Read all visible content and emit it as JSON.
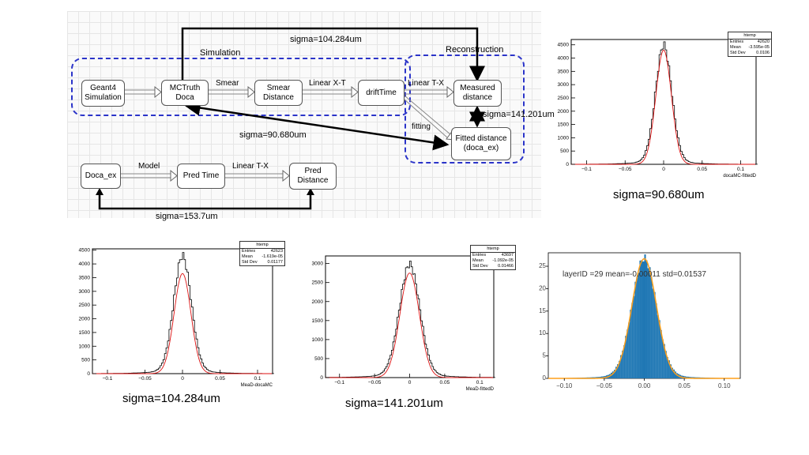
{
  "diagram": {
    "sim_label": "Simulation",
    "reco_label": "Reconstruction",
    "boxes": {
      "geant4": "Geant4\nSimulation",
      "mctruth": "MCTruth Doca",
      "smear_distance": "Smear\nDistance",
      "drifttime": "driftTime",
      "measured": "Measured\ndistance",
      "fitted": "Fitted distance\n(doca_ex)",
      "doca_ex": "Doca_ex",
      "pred_time": "Pred Time",
      "pred_distance": "Pred\nDistance"
    },
    "arrow_labels": {
      "smear": "Smear",
      "linear_xt": "Linear X-T",
      "linear_tx": "Linear T-X",
      "fitting": "fitting",
      "model": "Model",
      "linear_tx2": "Linear T-X"
    },
    "sigma_top": "sigma=104.284um",
    "sigma_mid": "sigma=90.680um",
    "sigma_right": "sigma=141.201um",
    "sigma_bottom": "sigma=153.7um"
  },
  "captions": {
    "c1": "sigma=90.680um",
    "c2": "sigma=104.284um",
    "c3": "sigma=141.201um"
  },
  "chart_data": [
    {
      "type": "bar",
      "stats_title": "htemp",
      "stats": [
        [
          "Entries",
          "42620"
        ],
        [
          "Mean",
          "-3.595e-05"
        ],
        [
          "Std Dev",
          "0.0106"
        ]
      ],
      "xlabel": "docaMC-fittedD",
      "xlim": [
        -0.12,
        0.12
      ],
      "ylim": [
        0,
        4700
      ],
      "xticks": [
        -0.1,
        -0.05,
        0,
        0.05,
        0.1
      ],
      "xtick_labels": [
        "−0.1",
        "−0.05",
        "0",
        "0.05",
        "0.1"
      ],
      "yticks": [
        0,
        500,
        1000,
        1500,
        2000,
        2500,
        3000,
        3500,
        4000,
        4500
      ],
      "peak": 4600,
      "sigma": 0.0106,
      "mean": 0,
      "fit_peak": 4300
    },
    {
      "type": "bar",
      "stats_title": "htemp",
      "stats": [
        [
          "Entries",
          "42623"
        ],
        [
          "Mean",
          "-1.619e-05"
        ],
        [
          "Std Dev",
          "0.01177"
        ]
      ],
      "xlabel": "MeaD-docaMC",
      "xlim": [
        -0.12,
        0.12
      ],
      "ylim": [
        0,
        4550
      ],
      "xticks": [
        -0.1,
        -0.05,
        0,
        0.05,
        0.1
      ],
      "xtick_labels": [
        "−0.1",
        "−0.05",
        "0",
        "0.05",
        "0.1"
      ],
      "yticks": [
        0,
        500,
        1000,
        1500,
        2000,
        2500,
        3000,
        3500,
        4000,
        4500
      ],
      "peak": 4400,
      "sigma": 0.01177,
      "mean": 0,
      "fit_peak": 3650
    },
    {
      "type": "bar",
      "stats_title": "htemp",
      "stats": [
        [
          "Entries",
          "43697"
        ],
        [
          "Mean",
          "-1.092e-05"
        ],
        [
          "Std Dev",
          "0.01466"
        ]
      ],
      "xlabel": "MeaD-fittedD",
      "xlim": [
        -0.12,
        0.12
      ],
      "ylim": [
        0,
        3200
      ],
      "xticks": [
        -0.1,
        -0.05,
        0,
        0.05,
        0.1
      ],
      "xtick_labels": [
        "−0.1",
        "−0.05",
        "0",
        "0.05",
        "0.1"
      ],
      "yticks": [
        0,
        500,
        1000,
        1500,
        2000,
        2500,
        3000
      ],
      "peak": 3050,
      "sigma": 0.01466,
      "mean": 0,
      "fit_peak": 2750
    },
    {
      "type": "bar",
      "title": "layerID =29 mean=-0.00011 std=0.01537",
      "xlim": [
        -0.12,
        0.12
      ],
      "ylim": [
        0,
        28
      ],
      "xticks": [
        -0.1,
        -0.05,
        0,
        0.05,
        0.1
      ],
      "xtick_labels": [
        "−0.10",
        "−0.05",
        "0.00",
        "0.05",
        "0.10"
      ],
      "yticks": [
        0,
        5,
        10,
        15,
        20,
        25
      ],
      "peak": 27.5,
      "sigma": 0.01537,
      "mean": -0.00011,
      "bar_color": "#1f77b4",
      "fit_color": "#ff9f1a"
    }
  ]
}
